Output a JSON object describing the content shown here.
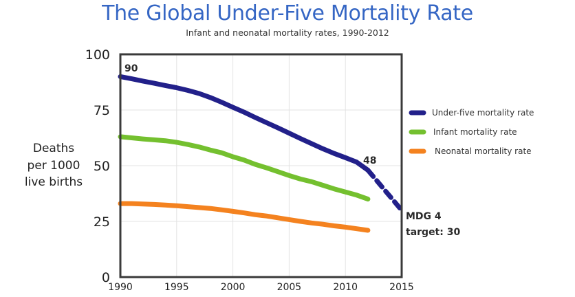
{
  "chart_data": {
    "type": "line",
    "title": "The Global Under-Five Mortality Rate",
    "subtitle": "Infant and neonatal mortality rates, 1990-2012",
    "xlabel": "",
    "ylabel_lines": [
      "Deaths",
      "per 1000",
      "live births"
    ],
    "xlim": [
      1990,
      2015
    ],
    "ylim": [
      0,
      100
    ],
    "x_ticks": [
      1990,
      1995,
      2000,
      2005,
      2010,
      2015
    ],
    "y_ticks": [
      0,
      25,
      50,
      75,
      100
    ],
    "grid": true,
    "legend_position": "right",
    "series": [
      {
        "name": "Under-five mortality rate",
        "color": "#22208a",
        "x": [
          1990,
          1991,
          1992,
          1993,
          1994,
          1995,
          1996,
          1997,
          1998,
          1999,
          2000,
          2001,
          2002,
          2003,
          2004,
          2005,
          2006,
          2007,
          2008,
          2009,
          2010,
          2011,
          2012
        ],
        "values": [
          90,
          89,
          88,
          87,
          86,
          85,
          83.8,
          82.4,
          80.6,
          78.5,
          76.2,
          74,
          71.6,
          69.3,
          67,
          64.6,
          62.2,
          59.9,
          57.6,
          55.5,
          53.6,
          51.6,
          48
        ]
      },
      {
        "name": "Infant mortality rate",
        "color": "#74c02f",
        "x": [
          1990,
          1991,
          1992,
          1993,
          1994,
          1995,
          1996,
          1997,
          1998,
          1999,
          2000,
          2001,
          2002,
          2003,
          2004,
          2005,
          2006,
          2007,
          2008,
          2009,
          2010,
          2011,
          2012
        ],
        "values": [
          63,
          62.5,
          62,
          61.6,
          61.2,
          60.5,
          59.5,
          58.4,
          57,
          55.8,
          54,
          52.5,
          50.6,
          49,
          47.3,
          45.6,
          44,
          42.8,
          41.2,
          39.6,
          38.2,
          36.8,
          35
        ]
      },
      {
        "name": "Neonatal mortality rate",
        "color": "#f4821f",
        "x": [
          1990,
          1991,
          1992,
          1993,
          1994,
          1995,
          1996,
          1997,
          1998,
          1999,
          2000,
          2001,
          2002,
          2003,
          2004,
          2005,
          2006,
          2007,
          2008,
          2009,
          2010,
          2011,
          2012
        ],
        "values": [
          33,
          33,
          32.8,
          32.6,
          32.3,
          32,
          31.6,
          31.2,
          30.8,
          30.2,
          29.5,
          28.8,
          28,
          27.4,
          26.6,
          25.8,
          25,
          24.3,
          23.7,
          23,
          22.4,
          21.7,
          21
        ]
      }
    ],
    "projection": {
      "series": "Under-five mortality rate",
      "x": [
        2012,
        2015
      ],
      "values": [
        48,
        30
      ],
      "style": "dashed"
    },
    "annotations": [
      {
        "text": "90",
        "x": 1990,
        "y": 90
      },
      {
        "text": "48",
        "x": 2012,
        "y": 48
      },
      {
        "text_lines": [
          "MDG 4",
          "target: 30"
        ],
        "x": 2015,
        "y": 30
      }
    ]
  }
}
